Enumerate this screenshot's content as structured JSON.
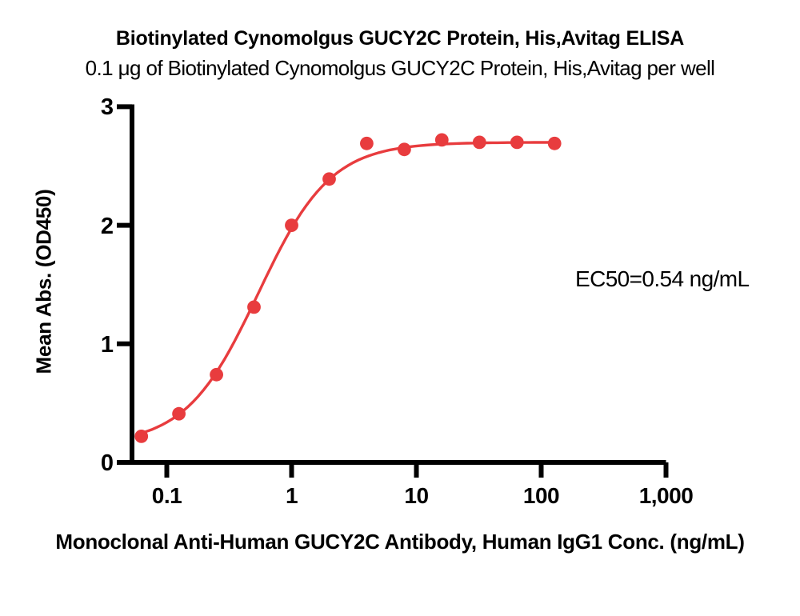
{
  "chart_data": {
    "type": "scatter",
    "title": "Biotinylated Cynomolgus GUCY2C Protein, His,Avitag ELISA",
    "subtitle": "0.1 μg of Biotinylated Cynomolgus GUCY2C Protein, His,Avitag per well",
    "xlabel": "Monoclonal Anti-Human GUCY2C Antibody, Human IgG1 Conc. (ng/mL)",
    "ylabel": "Mean Abs. (OD450)",
    "annotation": "EC50=0.54 ng/mL",
    "x_scale": "log",
    "xlim": [
      0.05,
      1000
    ],
    "ylim": [
      0,
      3
    ],
    "x_ticks": [
      0.1,
      1,
      10,
      100,
      1000
    ],
    "x_tick_labels": [
      "0.1",
      "1",
      "10",
      "100",
      "1,000"
    ],
    "y_ticks": [
      0,
      1,
      2,
      3
    ],
    "y_tick_labels": [
      "0",
      "1",
      "2",
      "3"
    ],
    "x": [
      0.0625,
      0.125,
      0.25,
      0.5,
      1,
      2,
      4,
      8,
      16,
      32,
      64,
      128
    ],
    "y": [
      0.22,
      0.41,
      0.74,
      1.31,
      2.0,
      2.39,
      2.69,
      2.64,
      2.72,
      2.7,
      2.7,
      2.69
    ],
    "fit": {
      "model": "4PL",
      "bottom": 0.15,
      "top": 2.7,
      "ec50": 0.54,
      "hill": 1.5
    },
    "point_color": "#E83C3E",
    "line_color": "#E83C3E",
    "axis_color": "#000000",
    "background": "#FFFFFF",
    "legend": "none",
    "grid": "off"
  }
}
